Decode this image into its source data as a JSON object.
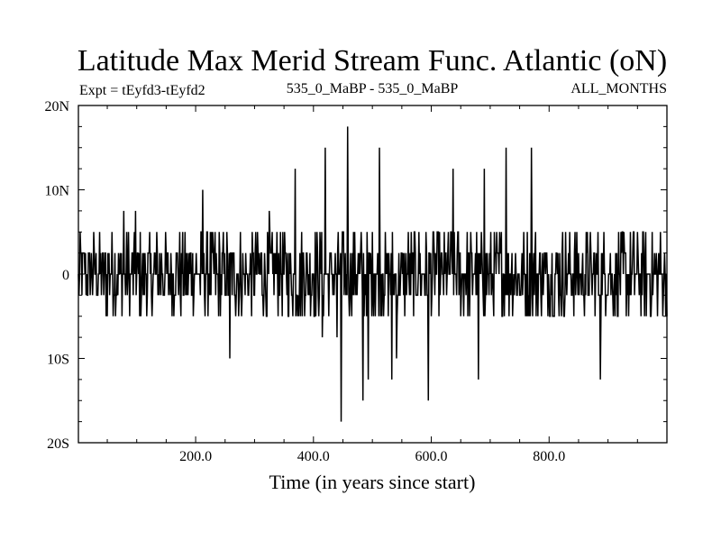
{
  "chart_data": {
    "type": "line",
    "title": "Latitude Max Merid Stream Func. Atlantic (oN)",
    "subtitle_left": "Expt = tEyfd3-tEyfd2",
    "subtitle_center": "535_0_MaBP - 535_0_MaBP",
    "subtitle_right": "ALL_MONTHS",
    "xlabel": "Time (in years since start)",
    "ylabel": "",
    "xlim": [
      1,
      1000
    ],
    "ylim": [
      -20,
      20
    ],
    "x_ticks": [
      {
        "value": 200,
        "label": "200.0"
      },
      {
        "value": 400,
        "label": "400.0"
      },
      {
        "value": 600,
        "label": "600.0"
      },
      {
        "value": 800,
        "label": "800.0"
      }
    ],
    "y_ticks": [
      {
        "value": 20,
        "label": "20N"
      },
      {
        "value": 10,
        "label": "10N"
      },
      {
        "value": 0,
        "label": "0"
      },
      {
        "value": -10,
        "label": "10S"
      },
      {
        "value": -20,
        "label": "20S"
      }
    ],
    "grid": false,
    "legend": "none",
    "line_color": "#000000",
    "series": [
      {
        "spikes": [
          {
            "x": 78,
            "y": 7.5
          },
          {
            "x": 98,
            "y": 7.5
          },
          {
            "x": 212,
            "y": 10
          },
          {
            "x": 258,
            "y": -10
          },
          {
            "x": 325,
            "y": 7.5
          },
          {
            "x": 369,
            "y": 12.5
          },
          {
            "x": 415,
            "y": -7.5
          },
          {
            "x": 420,
            "y": 15
          },
          {
            "x": 440,
            "y": -7.5
          },
          {
            "x": 447,
            "y": -17.5
          },
          {
            "x": 458,
            "y": 17.5
          },
          {
            "x": 484,
            "y": -15
          },
          {
            "x": 493,
            "y": -12.5
          },
          {
            "x": 512,
            "y": 15
          },
          {
            "x": 533,
            "y": -12.5
          },
          {
            "x": 541,
            "y": -10
          },
          {
            "x": 595,
            "y": -15
          },
          {
            "x": 637,
            "y": 12.5
          },
          {
            "x": 680,
            "y": -12.5
          },
          {
            "x": 690,
            "y": 12.5
          },
          {
            "x": 727,
            "y": 15
          },
          {
            "x": 770,
            "y": 15
          },
          {
            "x": 887,
            "y": -12.5
          }
        ]
      }
    ]
  }
}
